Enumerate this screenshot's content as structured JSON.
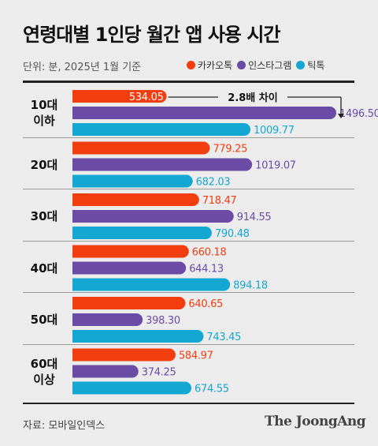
{
  "header": {
    "title": "연령대별 1인당 월간 앱 사용 시간",
    "unit": "단위: 분, 2025년 1월 기준"
  },
  "footer": {
    "source": "자료: 모바일인덱스",
    "brand": "The JoongAng"
  },
  "colors": {
    "kakao": "#f23d0f",
    "instagram": "#6b4ba5",
    "tiktok": "#14a7d1"
  },
  "chart_data": {
    "type": "bar",
    "orientation": "horizontal",
    "title": "연령대별 1인당 월간 앱 사용 시간",
    "subtitle": "단위: 분, 2025년 1월 기준",
    "legend_placement": "top-right",
    "categories": [
      "10대\n이하",
      "20대",
      "30대",
      "40대",
      "50대",
      "60대\n이상"
    ],
    "series": [
      {
        "name": "카카오톡",
        "color": "#f23d0f",
        "values": [
          534.05,
          779.25,
          718.47,
          660.18,
          640.65,
          584.97
        ]
      },
      {
        "name": "인스타그램",
        "color": "#6b4ba5",
        "values": [
          1496.5,
          1019.07,
          914.55,
          644.13,
          398.3,
          374.25
        ]
      },
      {
        "name": "틱톡",
        "color": "#14a7d1",
        "values": [
          1009.77,
          682.03,
          790.48,
          894.18,
          743.45,
          674.55
        ]
      }
    ],
    "value_labels": [
      [
        "534.05",
        "1496.50",
        "1009.77"
      ],
      [
        "779.25",
        "1019.07",
        "682.03"
      ],
      [
        "718.47",
        "914.55",
        "790.48"
      ],
      [
        "660.18",
        "644.13",
        "894.18"
      ],
      [
        "640.65",
        "398.30",
        "743.45"
      ],
      [
        "584.97",
        "374.25",
        "674.55"
      ]
    ],
    "annotation": "2.8배 차이",
    "xlim": [
      0,
      1530
    ]
  }
}
